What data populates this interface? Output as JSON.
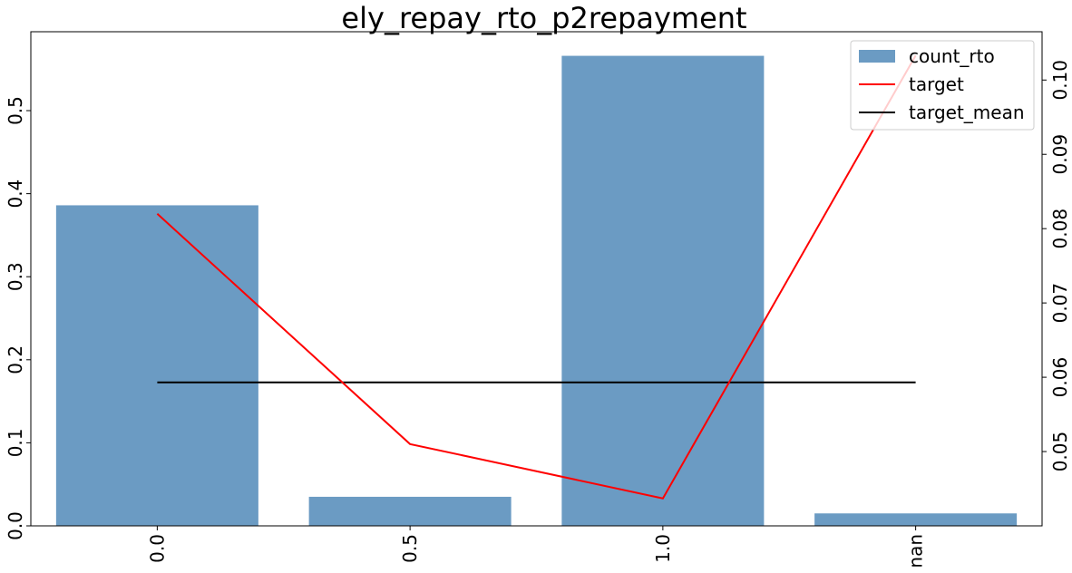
{
  "chart_data": {
    "type": "bar",
    "title": "ely_repay_rto_p2repayment",
    "categories": [
      "0.0",
      "0.5",
      "1.0",
      "nan"
    ],
    "bar_series": {
      "name": "count_rto",
      "values": [
        0.386,
        0.035,
        0.566,
        0.015
      ],
      "color": "#6b9bc3"
    },
    "line_series": [
      {
        "name": "target",
        "values": [
          0.082,
          0.051,
          0.0437,
          0.1033
        ],
        "color": "#ff0000",
        "axis": "right"
      },
      {
        "name": "target_mean",
        "values": [
          0.0593,
          0.0593,
          0.0593,
          0.0593
        ],
        "color": "#000000",
        "axis": "right"
      }
    ],
    "y_left": {
      "lim": [
        0.0,
        0.595
      ],
      "ticks": [
        0.0,
        0.1,
        0.2,
        0.3,
        0.4,
        0.5
      ],
      "tick_labels": [
        "0.0",
        "0.1",
        "0.2",
        "0.3",
        "0.4",
        "0.5"
      ]
    },
    "y_right": {
      "lim": [
        0.04,
        0.1065
      ],
      "ticks": [
        0.05,
        0.06,
        0.07,
        0.08,
        0.09,
        0.1
      ],
      "tick_labels": [
        "0.05",
        "0.06",
        "0.07",
        "0.08",
        "0.09",
        "0.10"
      ]
    },
    "grid": false,
    "legend_position": "top-right"
  }
}
